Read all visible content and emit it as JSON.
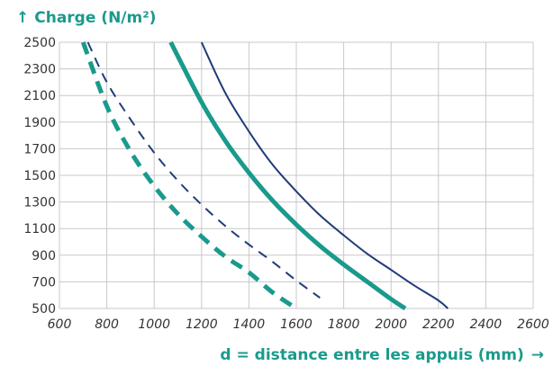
{
  "chart_data": {
    "type": "line",
    "title": "",
    "ylabel": "Charge (N/m²)",
    "xlabel": "d = distance entre les appuis (mm)",
    "xlim": [
      600,
      2600
    ],
    "ylim": [
      500,
      2500
    ],
    "x_ticks": [
      600,
      800,
      1000,
      1200,
      1400,
      1600,
      1800,
      2000,
      2200,
      2400,
      2600
    ],
    "y_ticks": [
      500,
      700,
      900,
      1100,
      1300,
      1500,
      1700,
      1900,
      2100,
      2300,
      2500
    ],
    "x_tick_labels": [
      "600",
      "800",
      "1000",
      "1200",
      "1400",
      "1600",
      "1800",
      "2000",
      "2200",
      "2400",
      "2600"
    ],
    "y_tick_labels": [
      "500",
      "700",
      "900",
      "1100",
      "1300",
      "1500",
      "1700",
      "1900",
      "2100",
      "2300",
      "2500"
    ],
    "grid": true,
    "series": [
      {
        "color": "#1a9a8c",
        "style": "dashed",
        "weight": "thick",
        "x": [
          700,
          800,
          900,
          1000,
          1100,
          1200,
          1300,
          1400,
          1500,
          1600
        ],
        "y": [
          2500,
          2020,
          1680,
          1420,
          1210,
          1040,
          890,
          770,
          620,
          500
        ]
      },
      {
        "color": "#1f3b7a",
        "style": "dashed",
        "weight": "thin",
        "x": [
          720,
          800,
          900,
          1000,
          1100,
          1200,
          1300,
          1400,
          1500,
          1600,
          1700
        ],
        "y": [
          2500,
          2200,
          1920,
          1670,
          1460,
          1280,
          1120,
          980,
          850,
          710,
          580
        ]
      },
      {
        "color": "#1a9a8c",
        "style": "solid",
        "weight": "thick",
        "x": [
          1070,
          1200,
          1300,
          1400,
          1500,
          1600,
          1700,
          1800,
          1900,
          2000,
          2060
        ],
        "y": [
          2500,
          2050,
          1760,
          1520,
          1310,
          1130,
          970,
          830,
          700,
          570,
          500
        ]
      },
      {
        "color": "#1f3b7a",
        "style": "solid",
        "weight": "thin",
        "x": [
          1200,
          1300,
          1400,
          1500,
          1600,
          1700,
          1800,
          1900,
          2000,
          2100,
          2200,
          2240
        ],
        "y": [
          2500,
          2120,
          1830,
          1580,
          1380,
          1200,
          1050,
          910,
          790,
          670,
          560,
          500
        ]
      }
    ]
  },
  "labels": {
    "y_axis": "Charge (N/m²)",
    "y_arrow": "↑",
    "x_axis": "d = distance entre les appuis (mm)",
    "x_arrow": "→"
  }
}
